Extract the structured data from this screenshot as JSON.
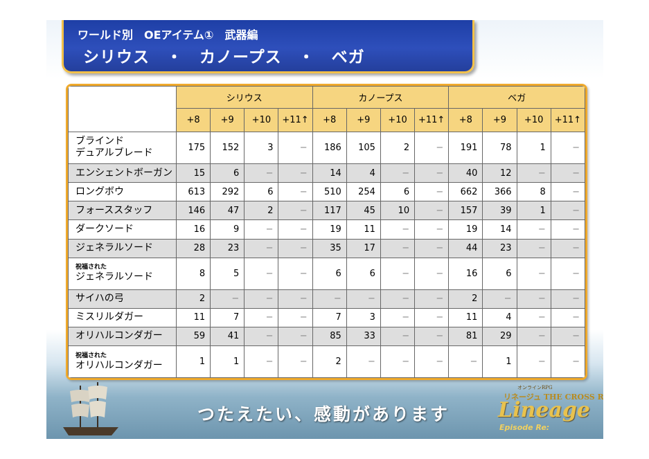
{
  "title": {
    "line1": "ワールド別　OEアイテム①　武器編",
    "line2": "シリウス　・　カノープス　・　ベガ"
  },
  "table": {
    "worlds": [
      "シリウス",
      "カノープス",
      "ベガ"
    ],
    "levels": [
      "+8",
      "+9",
      "+10",
      "+11↑"
    ],
    "rows": [
      {
        "prefix": "",
        "name": "ブラインド",
        "name2": "デュアルブレード",
        "values": [
          "175",
          "152",
          "3",
          "−",
          "186",
          "105",
          "2",
          "−",
          "191",
          "78",
          "1",
          "−"
        ]
      },
      {
        "prefix": "",
        "name": "エンシェントボーガン",
        "name2": "",
        "values": [
          "15",
          "6",
          "−",
          "−",
          "14",
          "4",
          "−",
          "−",
          "40",
          "12",
          "−",
          "−"
        ]
      },
      {
        "prefix": "",
        "name": "ロングボウ",
        "name2": "",
        "values": [
          "613",
          "292",
          "6",
          "−",
          "510",
          "254",
          "6",
          "−",
          "662",
          "366",
          "8",
          "−"
        ]
      },
      {
        "prefix": "",
        "name": "フォーススタッフ",
        "name2": "",
        "values": [
          "146",
          "47",
          "2",
          "−",
          "117",
          "45",
          "10",
          "−",
          "157",
          "39",
          "1",
          "−"
        ]
      },
      {
        "prefix": "",
        "name": "ダークソード",
        "name2": "",
        "values": [
          "16",
          "9",
          "−",
          "−",
          "19",
          "11",
          "−",
          "−",
          "19",
          "14",
          "−",
          "−"
        ]
      },
      {
        "prefix": "",
        "name": "ジェネラルソード",
        "name2": "",
        "values": [
          "28",
          "23",
          "−",
          "−",
          "35",
          "17",
          "−",
          "−",
          "44",
          "23",
          "−",
          "−"
        ]
      },
      {
        "prefix": "祝福された",
        "name": "ジェネラルソード",
        "name2": "",
        "values": [
          "8",
          "5",
          "−",
          "−",
          "6",
          "6",
          "−",
          "−",
          "16",
          "6",
          "−",
          "−"
        ]
      },
      {
        "prefix": "",
        "name": "サイハの弓",
        "name2": "",
        "values": [
          "2",
          "−",
          "−",
          "−",
          "−",
          "−",
          "−",
          "−",
          "2",
          "−",
          "−",
          "−"
        ]
      },
      {
        "prefix": "",
        "name": "ミスリルダガー",
        "name2": "",
        "values": [
          "11",
          "7",
          "−",
          "−",
          "7",
          "3",
          "−",
          "−",
          "11",
          "4",
          "−",
          "−"
        ]
      },
      {
        "prefix": "",
        "name": "オリハルコンダガー",
        "name2": "",
        "values": [
          "59",
          "41",
          "−",
          "−",
          "85",
          "33",
          "−",
          "−",
          "81",
          "29",
          "−",
          "−"
        ]
      },
      {
        "prefix": "祝福された",
        "name": "オリハルコンダガー",
        "name2": "",
        "values": [
          "1",
          "1",
          "−",
          "−",
          "2",
          "−",
          "−",
          "−",
          "−",
          "1",
          "−",
          "−"
        ]
      }
    ]
  },
  "footer": {
    "catchphrase": "つたえたい、感動があります",
    "logo_small": "オンラインRPG",
    "logo_line": "リネージュ THE CROSS RANCOR",
    "logo_main": "Lineage",
    "logo_episode": "Episode Re:"
  }
}
